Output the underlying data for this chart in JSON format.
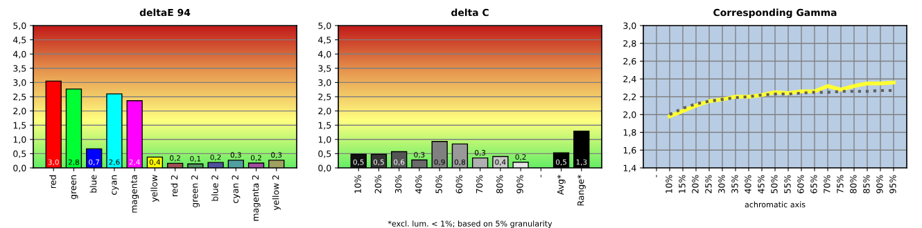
{
  "chart_data": [
    {
      "type": "bar",
      "title": "deltaE 94",
      "categories": [
        "red",
        "green",
        "blue",
        "cyan",
        "magenta",
        "yellow",
        "red 2",
        "green 2",
        "blue 2",
        "cyan 2",
        "magenta 2",
        "yellow 2"
      ],
      "values": [
        3.05,
        2.77,
        0.67,
        2.6,
        2.36,
        0.38,
        0.16,
        0.14,
        0.19,
        0.27,
        0.17,
        0.27
      ],
      "colors": [
        "#ff0000",
        "#00ff33",
        "#0000ff",
        "#00ffff",
        "#ff00ff",
        "#ffff00",
        "#a05050",
        "#509060",
        "#5050a0",
        "#50a0a0",
        "#a050a0",
        "#a0a060"
      ],
      "value_labels": [
        "3,0",
        "2,8",
        "0,7",
        "2,6",
        "2,4",
        "0,4",
        "0,2",
        "0,1",
        "0,2",
        "0,3",
        "0,2",
        "0,3"
      ],
      "ylim": [
        0,
        5
      ],
      "yticks": [
        {
          "value": 0,
          "label": "0,0"
        },
        {
          "value": 0.5,
          "label": "0,5"
        },
        {
          "value": 1,
          "label": "1,0"
        },
        {
          "value": 1.5,
          "label": "1,5"
        },
        {
          "value": 2,
          "label": "2,0"
        },
        {
          "value": 2.5,
          "label": "2,5"
        },
        {
          "value": 3,
          "label": "3,0"
        },
        {
          "value": 3.5,
          "label": "3,5"
        },
        {
          "value": 4,
          "label": "4,0"
        },
        {
          "value": 4.5,
          "label": "4,5"
        },
        {
          "value": 5,
          "label": "5,0"
        }
      ],
      "grid": "y"
    },
    {
      "type": "bar",
      "title": "delta C",
      "categories": [
        "10%",
        "20%",
        "30%",
        "40%",
        "50%",
        "60%",
        "70%",
        "80%",
        "90%",
        "-",
        "Avg*",
        "Range*"
      ],
      "values": [
        0.48,
        0.48,
        0.57,
        0.28,
        0.93,
        0.84,
        0.35,
        0.4,
        0.2,
        null,
        0.53,
        1.29
      ],
      "colors": [
        "#111111",
        "#333333",
        "#555555",
        "#6a6a6a",
        "#808080",
        "#999999",
        "#b0b0b0",
        "#c8c8c8",
        "#e6e6e6",
        "#000000",
        "#000000",
        "#000000"
      ],
      "value_labels": [
        "0,5",
        "0,5",
        "0,6",
        "0,3",
        "0,9",
        "0,8",
        "0,3",
        "0,4",
        "0,2",
        null,
        "0,5",
        "1,3"
      ],
      "ylim": [
        0,
        5
      ],
      "yticks": [
        {
          "value": 0,
          "label": "0,0"
        },
        {
          "value": 0.5,
          "label": "0,5"
        },
        {
          "value": 1,
          "label": "1,0"
        },
        {
          "value": 1.5,
          "label": "1,5"
        },
        {
          "value": 2,
          "label": "2,0"
        },
        {
          "value": 2.5,
          "label": "2,5"
        },
        {
          "value": 3,
          "label": "3,0"
        },
        {
          "value": 3.5,
          "label": "3,5"
        },
        {
          "value": 4,
          "label": "4,0"
        },
        {
          "value": 4.5,
          "label": "4,5"
        },
        {
          "value": 5,
          "label": "5,0"
        }
      ],
      "annotations": [
        "*excl. lum. < 1%; based on 5% granularity"
      ],
      "grid": "y"
    },
    {
      "type": "line",
      "title": "Corresponding Gamma",
      "xlabel": "achromatic axis",
      "categories": [
        "-",
        "10%",
        "15%",
        "20%",
        "25%",
        "30%",
        "35%",
        "40%",
        "45%",
        "50%",
        "55%",
        "60%",
        "65%",
        "70%",
        "75%",
        "80%",
        "85%",
        "90%",
        "95%"
      ],
      "series": [
        {
          "color": "#ffff33",
          "line_style": "solid",
          "values": [
            null,
            1.98,
            2.04,
            2.1,
            2.15,
            2.17,
            2.2,
            2.2,
            2.22,
            2.25,
            2.24,
            2.26,
            2.26,
            2.32,
            2.28,
            2.32,
            2.35,
            2.35,
            2.36
          ]
        },
        {
          "color": "#606060",
          "line_style": "dotted",
          "values": [
            null,
            2.0,
            2.07,
            2.12,
            2.15,
            2.17,
            2.19,
            2.2,
            2.22,
            2.23,
            2.23,
            2.24,
            2.25,
            2.25,
            2.26,
            2.26,
            2.26,
            2.27,
            2.27
          ]
        }
      ],
      "ylim": [
        1.4,
        3.0
      ],
      "yticks": [
        {
          "value": 1.4,
          "label": "1,4"
        },
        {
          "value": 1.6,
          "label": "1,6"
        },
        {
          "value": 1.8,
          "label": "1,8"
        },
        {
          "value": 2.0,
          "label": "2,0"
        },
        {
          "value": 2.2,
          "label": "2,2"
        },
        {
          "value": 2.4,
          "label": "2,4"
        },
        {
          "value": 2.6,
          "label": "2,6"
        },
        {
          "value": 2.8,
          "label": "2,8"
        },
        {
          "value": 3.0,
          "label": "3,0"
        }
      ],
      "grid": true,
      "marker": "none"
    }
  ]
}
